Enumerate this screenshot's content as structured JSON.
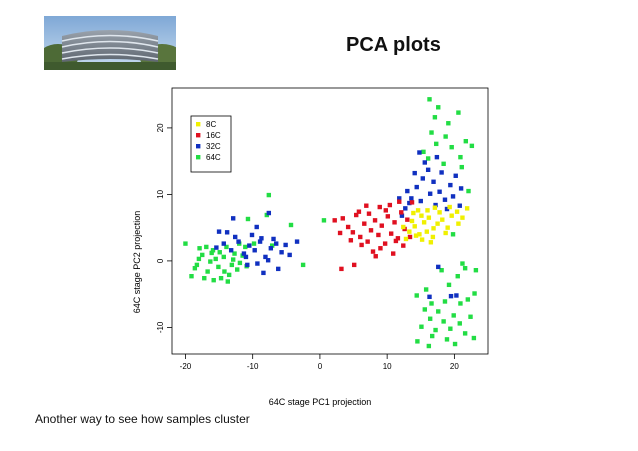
{
  "slide": {
    "title": "PCA plots",
    "caption": "Another way to see how samples cluster"
  },
  "logo": {
    "icon": "building-photo-icon"
  },
  "chart_data": {
    "type": "scatter",
    "xlabel": "64C stage PC1 projection",
    "ylabel": "64C stage PC2 projection",
    "xlim": [
      -22,
      25
    ],
    "ylim": [
      -14,
      26
    ],
    "xticks": [
      -20,
      -10,
      0,
      10,
      20
    ],
    "yticks": [
      -10,
      0,
      10,
      20
    ],
    "grid": false,
    "legend_position": "top-left",
    "series": [
      {
        "name": "8C",
        "color": "#f0f000",
        "points": [
          [
            13.3,
            4.4
          ],
          [
            14.1,
            5.2
          ],
          [
            14.8,
            4.0
          ],
          [
            15.5,
            5.8
          ],
          [
            16.2,
            6.5
          ],
          [
            16.9,
            4.9
          ],
          [
            17.5,
            5.6
          ],
          [
            15.1,
            6.8
          ],
          [
            14.3,
            3.8
          ],
          [
            16.8,
            3.6
          ],
          [
            18.2,
            6.2
          ],
          [
            19.0,
            5.0
          ],
          [
            13.7,
            6.0
          ],
          [
            15.9,
            4.4
          ],
          [
            17.8,
            7.3
          ],
          [
            19.6,
            6.8
          ],
          [
            20.4,
            7.4
          ],
          [
            21.2,
            6.5
          ],
          [
            14.6,
            7.6
          ],
          [
            16.5,
            2.8
          ],
          [
            12.8,
            3.3
          ],
          [
            15.2,
            3.2
          ],
          [
            18.7,
            4.2
          ],
          [
            17.1,
            8.0
          ],
          [
            13.9,
            7.2
          ],
          [
            16.0,
            7.6
          ],
          [
            19.3,
            8.1
          ],
          [
            20.6,
            5.6
          ],
          [
            21.9,
            7.9
          ],
          [
            12.4,
            5.1
          ]
        ]
      },
      {
        "name": "16C",
        "color": "#e01020",
        "points": [
          [
            3.4,
            6.4
          ],
          [
            4.2,
            5.1
          ],
          [
            4.9,
            4.3
          ],
          [
            5.4,
            6.9
          ],
          [
            6.0,
            3.6
          ],
          [
            6.6,
            5.6
          ],
          [
            7.1,
            2.9
          ],
          [
            7.6,
            4.6
          ],
          [
            8.2,
            6.1
          ],
          [
            8.7,
            3.9
          ],
          [
            9.2,
            5.3
          ],
          [
            9.7,
            2.6
          ],
          [
            10.1,
            6.7
          ],
          [
            10.6,
            4.1
          ],
          [
            11.1,
            5.8
          ],
          [
            11.6,
            3.4
          ],
          [
            12.1,
            7.3
          ],
          [
            12.6,
            4.8
          ],
          [
            13.0,
            6.2
          ],
          [
            5.8,
            7.4
          ],
          [
            7.3,
            7.1
          ],
          [
            8.9,
            8.1
          ],
          [
            10.4,
            8.4
          ],
          [
            11.8,
            8.9
          ],
          [
            9.0,
            1.9
          ],
          [
            6.2,
            2.4
          ],
          [
            4.6,
            3.1
          ],
          [
            12.4,
            2.3
          ],
          [
            13.4,
            3.6
          ],
          [
            3.0,
            4.2
          ],
          [
            2.2,
            6.1
          ],
          [
            7.9,
            1.4
          ],
          [
            10.9,
            1.1
          ],
          [
            8.3,
            0.7
          ],
          [
            3.2,
            -1.2
          ],
          [
            5.1,
            -0.6
          ],
          [
            11.3,
            3.0
          ],
          [
            9.8,
            7.6
          ],
          [
            13.7,
            8.8
          ],
          [
            6.9,
            8.3
          ]
        ]
      },
      {
        "name": "32C",
        "color": "#1030c0",
        "points": [
          [
            -15.4,
            2.0
          ],
          [
            -14.3,
            2.6
          ],
          [
            -13.2,
            1.6
          ],
          [
            -12.1,
            2.9
          ],
          [
            -11.3,
            1.1
          ],
          [
            -10.5,
            2.3
          ],
          [
            -9.7,
            1.6
          ],
          [
            -8.9,
            2.9
          ],
          [
            -8.1,
            0.6
          ],
          [
            -7.3,
            1.9
          ],
          [
            -6.5,
            2.6
          ],
          [
            -5.7,
            1.3
          ],
          [
            -10.1,
            3.9
          ],
          [
            -8.7,
            3.4
          ],
          [
            -7.7,
            0.1
          ],
          [
            -9.3,
            -0.4
          ],
          [
            -11.0,
            0.6
          ],
          [
            -12.6,
            3.6
          ],
          [
            -6.9,
            3.3
          ],
          [
            -5.1,
            2.4
          ],
          [
            -4.5,
            0.9
          ],
          [
            -13.8,
            4.3
          ],
          [
            -9.4,
            5.1
          ],
          [
            -12.9,
            6.4
          ],
          [
            -7.6,
            7.2
          ],
          [
            -6.2,
            -1.2
          ],
          [
            -10.8,
            -0.6
          ],
          [
            -8.4,
            -1.8
          ],
          [
            -15.0,
            4.4
          ],
          [
            -3.4,
            2.9
          ],
          [
            12.7,
            7.9
          ],
          [
            13.6,
            9.4
          ],
          [
            14.4,
            11.1
          ],
          [
            15.3,
            12.4
          ],
          [
            16.1,
            13.7
          ],
          [
            16.9,
            11.9
          ],
          [
            17.8,
            10.4
          ],
          [
            18.6,
            9.2
          ],
          [
            19.4,
            11.4
          ],
          [
            20.2,
            12.8
          ],
          [
            15.6,
            14.8
          ],
          [
            16.4,
            10.1
          ],
          [
            14.1,
            13.2
          ],
          [
            13.3,
            8.7
          ],
          [
            17.2,
            8.4
          ],
          [
            19.8,
            9.7
          ],
          [
            12.2,
            6.8
          ],
          [
            15.0,
            9.0
          ],
          [
            21.0,
            10.9
          ],
          [
            18.1,
            13.3
          ],
          [
            17.4,
            15.6
          ],
          [
            14.8,
            16.3
          ],
          [
            16.3,
            -5.4
          ],
          [
            19.5,
            -5.3
          ],
          [
            20.3,
            -5.2
          ],
          [
            17.6,
            -0.9
          ],
          [
            13.0,
            10.5
          ],
          [
            18.9,
            7.8
          ],
          [
            20.8,
            8.3
          ],
          [
            11.8,
            9.4
          ]
        ]
      },
      {
        "name": "64C",
        "color": "#22dd44",
        "points": [
          [
            -20.0,
            2.6
          ],
          [
            -19.1,
            -2.3
          ],
          [
            -18.3,
            -0.6
          ],
          [
            -17.5,
            0.9
          ],
          [
            -16.7,
            -1.6
          ],
          [
            -15.9,
            1.6
          ],
          [
            -15.1,
            -0.9
          ],
          [
            -14.3,
            0.6
          ],
          [
            -13.5,
            -2.1
          ],
          [
            -12.7,
            1.1
          ],
          [
            -11.9,
            -0.3
          ],
          [
            -11.1,
            2.1
          ],
          [
            -17.9,
            1.9
          ],
          [
            -16.3,
            -0.1
          ],
          [
            -14.7,
            -2.6
          ],
          [
            -13.9,
            2.1
          ],
          [
            -12.3,
            -1.3
          ],
          [
            -18.6,
            -1.1
          ],
          [
            -15.5,
            0.3
          ],
          [
            -13.1,
            -0.6
          ],
          [
            -11.5,
            0.8
          ],
          [
            -16.9,
            2.1
          ],
          [
            -14.9,
            1.3
          ],
          [
            -12.0,
            2.6
          ],
          [
            -17.2,
            -2.6
          ],
          [
            -13.7,
            -3.1
          ],
          [
            -10.9,
            -0.8
          ],
          [
            -15.8,
            -2.9
          ],
          [
            -12.9,
            0.2
          ],
          [
            -18.0,
            0.3
          ],
          [
            -16.1,
            1.2
          ],
          [
            -14.2,
            -1.6
          ],
          [
            -9.8,
            2.6
          ],
          [
            -7.6,
            9.9
          ],
          [
            -7.1,
            2.3
          ],
          [
            -10.7,
            6.3
          ],
          [
            -7.9,
            6.9
          ],
          [
            -4.3,
            5.4
          ],
          [
            -2.5,
            -0.6
          ],
          [
            0.6,
            6.1
          ],
          [
            16.3,
            24.3
          ],
          [
            17.6,
            23.1
          ],
          [
            20.6,
            22.3
          ],
          [
            17.1,
            21.6
          ],
          [
            19.1,
            20.7
          ],
          [
            16.6,
            19.3
          ],
          [
            18.7,
            18.7
          ],
          [
            17.3,
            17.6
          ],
          [
            19.6,
            17.1
          ],
          [
            15.4,
            16.4
          ],
          [
            21.7,
            18.0
          ],
          [
            22.6,
            17.3
          ],
          [
            20.9,
            15.6
          ],
          [
            16.1,
            15.4
          ],
          [
            18.4,
            14.6
          ],
          [
            21.1,
            14.1
          ],
          [
            22.1,
            10.5
          ],
          [
            19.8,
            4.0
          ],
          [
            21.2,
            -0.4
          ],
          [
            23.2,
            -1.4
          ],
          [
            21.6,
            -1.1
          ],
          [
            18.1,
            -1.4
          ],
          [
            20.5,
            -2.3
          ],
          [
            14.4,
            -5.2
          ],
          [
            16.6,
            -6.4
          ],
          [
            18.6,
            -6.1
          ],
          [
            20.9,
            -6.4
          ],
          [
            15.6,
            -7.3
          ],
          [
            17.6,
            -7.6
          ],
          [
            19.9,
            -8.2
          ],
          [
            22.4,
            -8.4
          ],
          [
            16.4,
            -8.7
          ],
          [
            18.4,
            -9.1
          ],
          [
            20.8,
            -9.4
          ],
          [
            15.1,
            -9.9
          ],
          [
            17.2,
            -10.4
          ],
          [
            19.4,
            -10.2
          ],
          [
            21.6,
            -10.9
          ],
          [
            16.7,
            -11.3
          ],
          [
            18.9,
            -11.8
          ],
          [
            14.5,
            -12.1
          ],
          [
            16.2,
            -12.8
          ],
          [
            20.1,
            -12.5
          ],
          [
            22.9,
            -11.6
          ],
          [
            15.8,
            -4.3
          ],
          [
            22.0,
            -5.8
          ],
          [
            23.0,
            -4.9
          ],
          [
            19.2,
            -3.6
          ]
        ]
      }
    ]
  }
}
